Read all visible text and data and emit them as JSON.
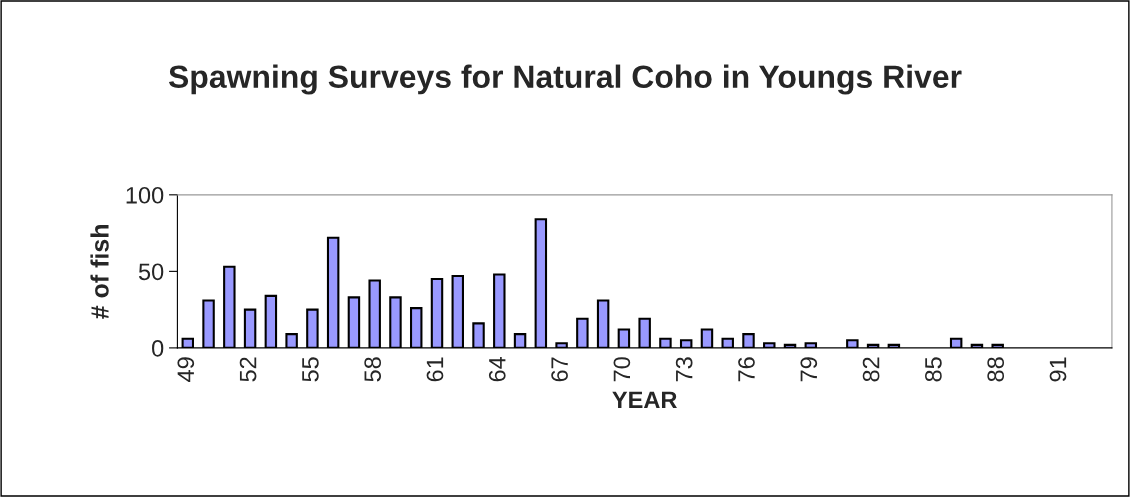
{
  "chart_data": {
    "type": "bar",
    "title": "Spawning Surveys for Natural Coho in Youngs River",
    "xlabel": "YEAR",
    "ylabel": "# of fish",
    "categories": [
      "49",
      null,
      null,
      "52",
      null,
      null,
      "55",
      null,
      null,
      "58",
      null,
      null,
      "61",
      null,
      null,
      "64",
      null,
      null,
      "67",
      null,
      null,
      "70",
      null,
      null,
      "73",
      null,
      null,
      "76",
      null,
      null,
      "79",
      null,
      null,
      "82",
      null,
      null,
      "85",
      null,
      null,
      "88",
      null,
      null,
      "91",
      null,
      null
    ],
    "values": [
      6,
      31,
      53,
      25,
      34,
      9,
      25,
      72,
      33,
      44,
      33,
      26,
      45,
      47,
      16,
      48,
      9,
      84,
      3,
      19,
      31,
      12,
      19,
      6,
      5,
      12,
      6,
      9,
      3,
      2,
      3,
      0,
      5,
      2,
      2,
      0,
      0,
      6,
      2,
      2,
      0,
      0,
      0,
      0,
      0
    ],
    "color": "#9999ff",
    "ylim": [
      0,
      100
    ],
    "yticks": [
      0,
      50,
      100
    ],
    "grid": false,
    "legend": false
  }
}
